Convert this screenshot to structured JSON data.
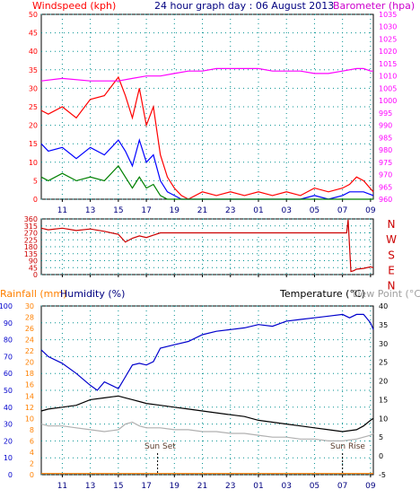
{
  "header": {
    "title": "24 hour graph day : 06 August 2013",
    "wind_label": "Windspeed (kph)",
    "baro_label": "Barometer (hpa)"
  },
  "mid_header": {
    "rain_label": "Rainfall (mm)",
    "humidity_label": "Humidity (%)",
    "temp_label": "Temperature (°C)",
    "dew_label": "Dew Point (°C)"
  },
  "annotations": {
    "sunset": "Sun Set",
    "sunrise": "Sun Rise"
  },
  "colors": {
    "windspeed": "#ff0000",
    "wind_blue": "#0000ff",
    "wind_green": "#008000",
    "barometer": "#ff00ff",
    "direction": "#cc0000",
    "humidity": "#0000cc",
    "temperature": "#000000",
    "dewpoint": "#b0b0b0",
    "rainfall": "#ff8000",
    "grid": "#009090",
    "axis_humidity": "#0000cc"
  },
  "chart_data": [
    {
      "id": "wind_baro",
      "type": "line",
      "title": "24 hour graph day : 06 August 2013",
      "x_ticks": [
        "11",
        "13",
        "15",
        "17",
        "19",
        "21",
        "23",
        "01",
        "03",
        "05",
        "07",
        "09"
      ],
      "left_axis": {
        "label": "Windspeed (kph)",
        "ylim": [
          0,
          50
        ],
        "ticks": [
          "0",
          "5",
          "10",
          "15",
          "20",
          "25",
          "30",
          "35",
          "40",
          "45",
          "50"
        ]
      },
      "right_axis": {
        "label": "Barometer (hpa)",
        "ylim": [
          960,
          1035
        ],
        "ticks": [
          "960",
          "965",
          "970",
          "975",
          "980",
          "985",
          "990",
          "995",
          "1000",
          "1005",
          "1010",
          "1015",
          "1020",
          "1025",
          "1030",
          "1035"
        ]
      },
      "grid": true,
      "series": [
        {
          "name": "Windspeed (kph)",
          "axis": "left",
          "color": "#ff0000",
          "x": [
            9.5,
            10,
            11,
            12,
            13,
            14,
            15,
            15.5,
            16,
            16.5,
            17,
            17.5,
            18,
            18.5,
            19,
            19.5,
            20,
            21,
            22,
            23,
            24,
            25,
            26,
            27,
            28,
            29,
            30,
            31,
            31.5,
            32,
            32.5,
            33.2
          ],
          "y": [
            24,
            23,
            25,
            22,
            27,
            28,
            33,
            28,
            22,
            30,
            20,
            25,
            12,
            6,
            3,
            1,
            0,
            2,
            1,
            2,
            1,
            2,
            1,
            2,
            1,
            3,
            2,
            3,
            4,
            6,
            5,
            2
          ]
        },
        {
          "axis": "left",
          "color": "#0000ff",
          "x": [
            9.5,
            10,
            11,
            12,
            13,
            14,
            15,
            15.5,
            16,
            16.5,
            17,
            17.5,
            18,
            18.5,
            19,
            19.5,
            20,
            21,
            22,
            23,
            24,
            25,
            26,
            27,
            28,
            29,
            30,
            31,
            31.5,
            32,
            32.5,
            33.2
          ],
          "y": [
            15,
            13,
            14,
            11,
            14,
            12,
            16,
            13,
            9,
            16,
            10,
            12,
            5,
            2,
            1,
            0,
            0,
            0,
            0,
            0,
            0,
            0,
            0,
            0,
            0,
            1,
            0,
            1,
            2,
            2,
            2,
            1
          ]
        },
        {
          "axis": "left",
          "color": "#008000",
          "x": [
            9.5,
            10,
            11,
            12,
            13,
            14,
            15,
            15.5,
            16,
            16.5,
            17,
            17.5,
            18,
            18.5,
            19,
            20,
            21,
            22,
            23,
            24,
            25,
            26,
            27,
            28,
            29,
            30,
            31,
            32,
            33.2
          ],
          "y": [
            6,
            5,
            7,
            5,
            6,
            5,
            9,
            6,
            3,
            6,
            3,
            4,
            1,
            0,
            0,
            0,
            0,
            0,
            0,
            0,
            0,
            0,
            0,
            0,
            0,
            0,
            0,
            0,
            0
          ]
        },
        {
          "name": "Barometer (hpa)",
          "axis": "right",
          "color": "#ff00ff",
          "x": [
            9.5,
            11,
            13,
            15,
            16,
            17,
            18,
            19,
            20,
            21,
            22,
            23,
            24,
            25,
            26,
            27,
            28,
            29,
            30,
            31,
            32,
            32.5,
            33,
            33.2
          ],
          "y": [
            1008,
            1009,
            1008,
            1008,
            1009,
            1010,
            1010,
            1011,
            1012,
            1012,
            1013,
            1013,
            1013,
            1013,
            1012,
            1012,
            1012,
            1011,
            1011,
            1012,
            1013,
            1013,
            1012,
            1012
          ]
        }
      ]
    },
    {
      "id": "direction",
      "type": "line",
      "x_ticks": [
        "11",
        "13",
        "15",
        "17",
        "19",
        "21",
        "23",
        "01",
        "03",
        "05",
        "07",
        "09"
      ],
      "left_axis": {
        "ylim": [
          0,
          360
        ],
        "ticks": [
          "0",
          "45",
          "90",
          "135",
          "180",
          "225",
          "270",
          "315",
          "360"
        ]
      },
      "right_labels": [
        "N",
        "W",
        "S",
        "E",
        "N"
      ],
      "grid": true,
      "series": [
        {
          "axis": "left",
          "color": "#cc0000",
          "x": [
            9.5,
            10,
            11,
            12,
            13,
            14,
            15,
            15.5,
            16,
            16.5,
            17,
            17.5,
            18,
            19,
            20,
            21,
            22,
            23,
            24,
            25,
            26,
            27,
            28,
            29,
            30,
            31,
            31.3,
            31.4,
            31.6,
            31.8,
            32,
            32.5,
            33,
            33.2
          ],
          "y": [
            300,
            290,
            300,
            285,
            295,
            280,
            260,
            210,
            235,
            250,
            240,
            255,
            270,
            270,
            270,
            270,
            270,
            270,
            270,
            270,
            270,
            270,
            270,
            270,
            270,
            270,
            270,
            355,
            20,
            25,
            35,
            40,
            50,
            45
          ]
        }
      ]
    },
    {
      "id": "temp_hum",
      "type": "line",
      "x_ticks": [
        "11",
        "13",
        "15",
        "17",
        "19",
        "21",
        "23",
        "01",
        "03",
        "05",
        "07",
        "09"
      ],
      "rain_axis": {
        "label": "Rainfall (mm)",
        "ylim": [
          0,
          30
        ],
        "ticks": [
          "0",
          "2",
          "4",
          "6",
          "8",
          "10",
          "12",
          "14",
          "16",
          "18",
          "20",
          "22",
          "24",
          "26",
          "28",
          "30"
        ]
      },
      "humidity_axis": {
        "label": "Humidity (%)",
        "ylim": [
          0,
          100
        ],
        "ticks": [
          "0",
          "10",
          "20",
          "30",
          "40",
          "50",
          "60",
          "70",
          "80",
          "90",
          "100"
        ]
      },
      "temp_axis": {
        "label": "Temperature (°C)",
        "ylim": [
          -5,
          40
        ],
        "ticks": [
          "-5",
          "0",
          "5",
          "10",
          "15",
          "20",
          "25",
          "30",
          "35",
          "40"
        ]
      },
      "grid": true,
      "series": [
        {
          "name": "Humidity (%)",
          "axis": "humidity",
          "color": "#0000cc",
          "x": [
            9.5,
            10,
            11,
            12,
            13,
            13.5,
            14,
            15,
            15.5,
            16,
            16.5,
            17,
            17.5,
            18,
            19,
            20,
            21,
            22,
            23,
            24,
            25,
            26,
            27,
            28,
            29,
            30,
            31,
            31.5,
            32,
            32.5,
            33,
            33.2
          ],
          "y": [
            74,
            70,
            66,
            60,
            53,
            50,
            55,
            51,
            58,
            65,
            66,
            65,
            67,
            75,
            77,
            79,
            83,
            85,
            86,
            87,
            89,
            88,
            91,
            92,
            93,
            94,
            95,
            93,
            95,
            95,
            90,
            86
          ]
        },
        {
          "name": "Temperature (°C)",
          "axis": "temp",
          "color": "#000000",
          "x": [
            9.5,
            10,
            11,
            12,
            13,
            14,
            15,
            15.5,
            16,
            16.5,
            17,
            18,
            19,
            20,
            21,
            22,
            23,
            24,
            25,
            26,
            27,
            28,
            29,
            30,
            31,
            32,
            32.5,
            33,
            33.2
          ],
          "y": [
            12,
            12.5,
            13,
            13.5,
            15,
            15.5,
            16,
            15.5,
            15,
            14.5,
            14,
            13.5,
            13,
            12.5,
            12,
            11.5,
            11,
            10.5,
            9.5,
            9,
            8.5,
            8,
            7.5,
            7,
            6.5,
            7,
            8,
            9.5,
            10
          ]
        },
        {
          "name": "Dew Point (°C)",
          "axis": "temp",
          "color": "#b0b0b0",
          "x": [
            9.5,
            10,
            11,
            12,
            13,
            14,
            15,
            15.5,
            16,
            16.5,
            17,
            18,
            19,
            20,
            21,
            22,
            23,
            24,
            25,
            26,
            27,
            28,
            29,
            30,
            31,
            32,
            32.5,
            33,
            33.2
          ],
          "y": [
            8.5,
            8,
            8,
            7.5,
            7,
            6.5,
            7,
            8.5,
            9,
            8,
            7.5,
            7.5,
            7,
            7,
            6.5,
            6.5,
            6,
            6,
            5.5,
            5,
            5,
            4.5,
            4.5,
            4,
            4,
            4.5,
            5,
            5.5,
            6
          ]
        },
        {
          "name": "Rainfall (mm)",
          "axis": "rain",
          "color": "#ff8000",
          "x": [
            9.5,
            33.2
          ],
          "y": [
            0.2,
            0.2
          ]
        }
      ]
    }
  ]
}
